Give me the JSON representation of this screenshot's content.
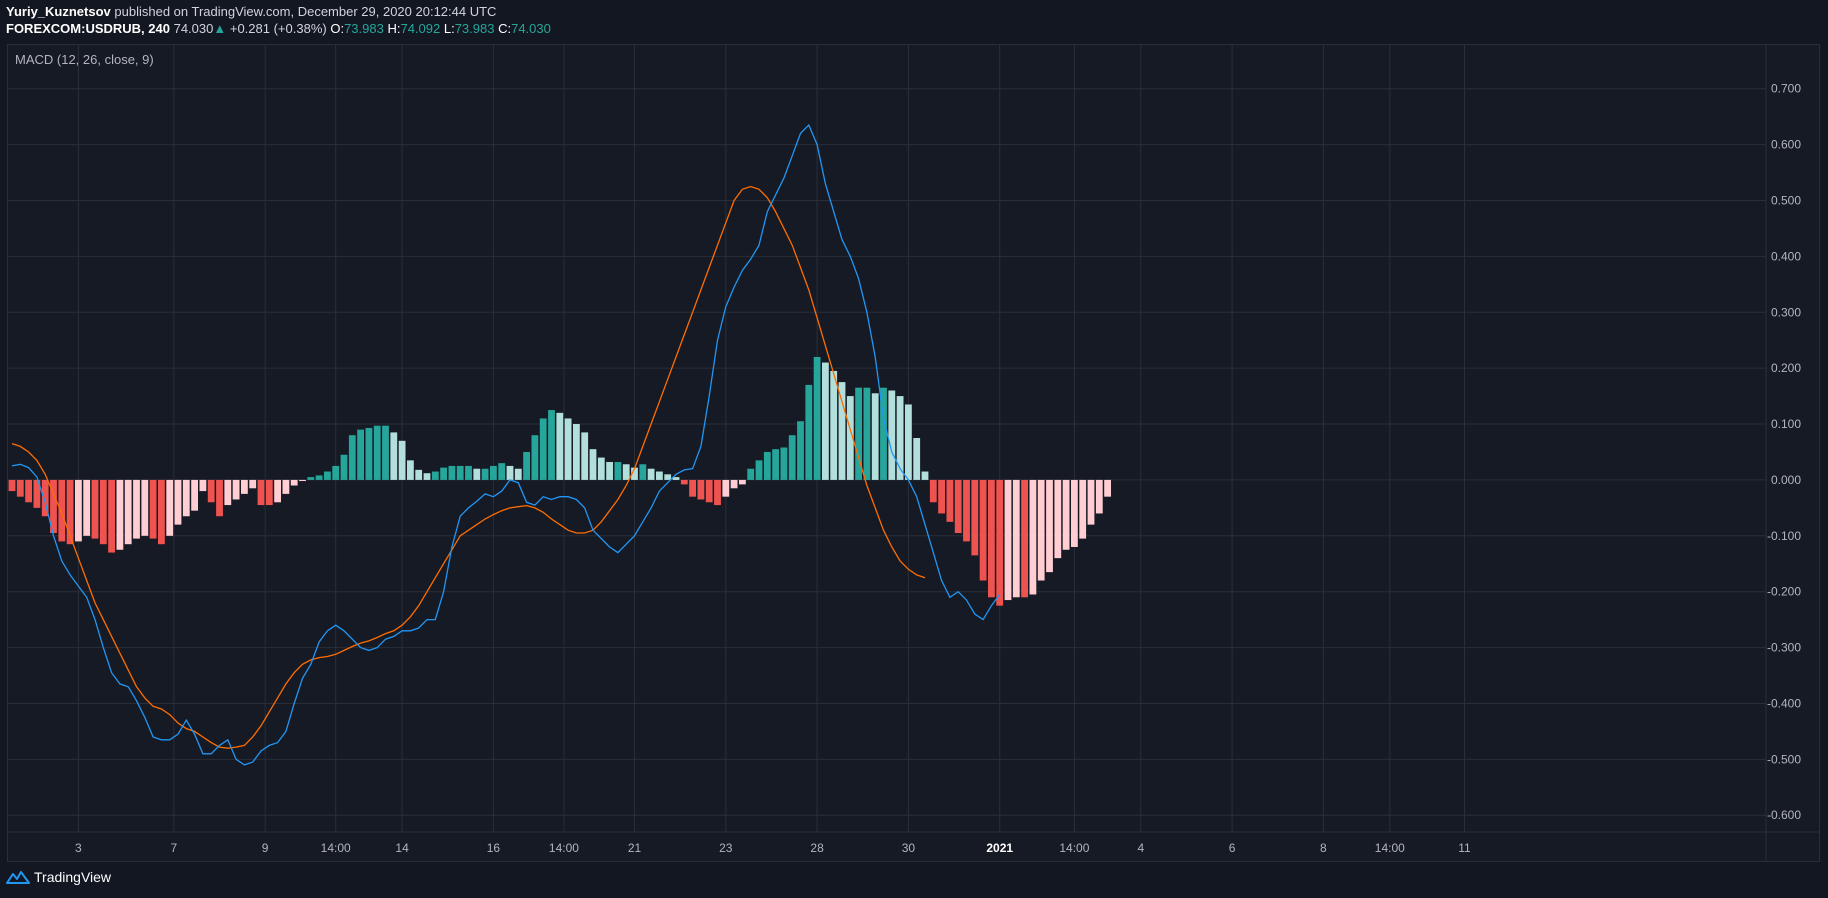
{
  "header": {
    "author": "Yuriy_Kuznetsov",
    "published_text": "published on TradingView.com, December 29, 2020 20:12:44 UTC",
    "symbol": "FOREXCOM:USDRUB, 240",
    "last": "74.030",
    "change_arrow": "▲",
    "change": "+0.281 (+0.38%)",
    "o_label": "O:",
    "o_value": "73.983",
    "h_label": "H:",
    "h_value": "74.092",
    "l_label": "L:",
    "l_value": "73.983",
    "c_label": "C:",
    "c_value": "74.030"
  },
  "indicator": {
    "label": "MACD (12, 26, close, 9)"
  },
  "brand": {
    "name": "TradingView",
    "icon": "tradingview-logo-icon"
  },
  "colors": {
    "background": "#131722",
    "grid": "#2a2e39",
    "macd_line": "#2196f3",
    "signal_line": "#ff6d00",
    "hist_up_strong": "#26a69a",
    "hist_up_weak": "#b2dfdb",
    "hist_down_strong": "#ef5350",
    "hist_down_weak": "#ffcdd2"
  },
  "chart_data": {
    "type": "bar+line",
    "yaxis": {
      "ticks": [
        "0.700",
        "0.600",
        "0.500",
        "0.400",
        "0.300",
        "0.200",
        "0.100",
        "0.000",
        "-0.100",
        "-0.200",
        "-0.300",
        "-0.400",
        "-0.500",
        "-0.600"
      ],
      "tick_values": [
        0.7,
        0.6,
        0.5,
        0.4,
        0.3,
        0.2,
        0.1,
        0.0,
        -0.1,
        -0.2,
        -0.3,
        -0.4,
        -0.5,
        -0.6
      ],
      "ylim": [
        -0.63,
        0.78
      ]
    },
    "xaxis": {
      "ticks": [
        "3",
        "7",
        "9",
        "14:00",
        "14",
        "16",
        "14:00",
        "21",
        "23",
        "28",
        "30",
        "2021",
        "14:00",
        "4",
        "6",
        "8",
        "14:00",
        "11"
      ],
      "tick_index": [
        8,
        19.5,
        30.5,
        39,
        47,
        58,
        66.5,
        75,
        86,
        97,
        108,
        119,
        128,
        136,
        147,
        158,
        166,
        175
      ],
      "bold_tick": "2021",
      "xlim": [
        0,
        179
      ]
    },
    "histogram": [
      -0.02,
      -0.03,
      -0.04,
      -0.05,
      -0.065,
      -0.095,
      -0.11,
      -0.115,
      -0.11,
      -0.1,
      -0.105,
      -0.115,
      -0.13,
      -0.125,
      -0.115,
      -0.105,
      -0.1,
      -0.105,
      -0.115,
      -0.1,
      -0.08,
      -0.065,
      -0.055,
      -0.02,
      -0.04,
      -0.065,
      -0.045,
      -0.035,
      -0.025,
      -0.015,
      -0.045,
      -0.045,
      -0.04,
      -0.025,
      -0.01,
      -0.002,
      0.005,
      0.008,
      0.015,
      0.025,
      0.045,
      0.08,
      0.09,
      0.093,
      0.097,
      0.097,
      0.085,
      0.07,
      0.035,
      0.018,
      0.012,
      0.015,
      0.022,
      0.025,
      0.025,
      0.025,
      0.02,
      0.02,
      0.025,
      0.03,
      0.025,
      0.02,
      0.05,
      0.08,
      0.11,
      0.125,
      0.12,
      0.11,
      0.1,
      0.085,
      0.055,
      0.04,
      0.032,
      0.032,
      0.028,
      0.022,
      0.028,
      0.02,
      0.015,
      0.01,
      0.005,
      -0.008,
      -0.03,
      -0.035,
      -0.04,
      -0.045,
      -0.03,
      -0.015,
      -0.008,
      0.02,
      0.035,
      0.05,
      0.055,
      0.058,
      0.08,
      0.105,
      0.17,
      0.22,
      0.21,
      0.195,
      0.175,
      0.15,
      0.165,
      0.165,
      0.155,
      0.165,
      0.16,
      0.15,
      0.135,
      0.075,
      0.015,
      -0.04,
      -0.06,
      -0.075,
      -0.095,
      -0.11,
      -0.135,
      -0.18,
      -0.21,
      -0.225,
      -0.215,
      -0.21,
      -0.21,
      -0.205,
      -0.18,
      -0.165,
      -0.14,
      -0.125,
      -0.12,
      -0.105,
      -0.08,
      -0.06,
      -0.03
    ],
    "macd_points": [
      [
        0,
        0.025
      ],
      [
        1,
        0.028
      ],
      [
        2,
        0.022
      ],
      [
        3,
        0.005
      ],
      [
        4,
        -0.04
      ],
      [
        5,
        -0.1
      ],
      [
        6,
        -0.145
      ],
      [
        7,
        -0.17
      ],
      [
        8,
        -0.19
      ],
      [
        9,
        -0.21
      ],
      [
        10,
        -0.25
      ],
      [
        11,
        -0.3
      ],
      [
        12,
        -0.345
      ],
      [
        13,
        -0.365
      ],
      [
        14,
        -0.37
      ],
      [
        15,
        -0.395
      ],
      [
        16,
        -0.425
      ],
      [
        17,
        -0.46
      ],
      [
        18,
        -0.465
      ],
      [
        19,
        -0.465
      ],
      [
        20,
        -0.455
      ],
      [
        21,
        -0.43
      ],
      [
        22,
        -0.455
      ],
      [
        23,
        -0.49
      ],
      [
        24,
        -0.49
      ],
      [
        25,
        -0.475
      ],
      [
        26,
        -0.465
      ],
      [
        27,
        -0.5
      ],
      [
        28,
        -0.51
      ],
      [
        29,
        -0.505
      ],
      [
        30,
        -0.485
      ],
      [
        31,
        -0.475
      ],
      [
        32,
        -0.47
      ],
      [
        33,
        -0.45
      ],
      [
        34,
        -0.4
      ],
      [
        35,
        -0.355
      ],
      [
        36,
        -0.33
      ],
      [
        37,
        -0.29
      ],
      [
        38,
        -0.27
      ],
      [
        39,
        -0.26
      ],
      [
        40,
        -0.27
      ],
      [
        41,
        -0.285
      ],
      [
        42,
        -0.3
      ],
      [
        43,
        -0.305
      ],
      [
        44,
        -0.3
      ],
      [
        45,
        -0.285
      ],
      [
        46,
        -0.28
      ],
      [
        47,
        -0.27
      ],
      [
        48,
        -0.27
      ],
      [
        49,
        -0.265
      ],
      [
        50,
        -0.25
      ],
      [
        51,
        -0.25
      ],
      [
        52,
        -0.2
      ],
      [
        53,
        -0.12
      ],
      [
        54,
        -0.065
      ],
      [
        55,
        -0.05
      ],
      [
        56,
        -0.038
      ],
      [
        57,
        -0.025
      ],
      [
        58,
        -0.03
      ],
      [
        59,
        -0.02
      ],
      [
        60,
        0.0
      ],
      [
        61,
        -0.005
      ],
      [
        62,
        -0.04
      ],
      [
        63,
        -0.045
      ],
      [
        64,
        -0.03
      ],
      [
        65,
        -0.035
      ],
      [
        66,
        -0.03
      ],
      [
        67,
        -0.03
      ],
      [
        68,
        -0.035
      ],
      [
        69,
        -0.05
      ],
      [
        70,
        -0.09
      ],
      [
        71,
        -0.105
      ],
      [
        72,
        -0.12
      ],
      [
        73,
        -0.13
      ],
      [
        74,
        -0.115
      ],
      [
        75,
        -0.1
      ],
      [
        76,
        -0.075
      ],
      [
        77,
        -0.05
      ],
      [
        78,
        -0.02
      ],
      [
        79,
        -0.005
      ],
      [
        80,
        0.01
      ],
      [
        81,
        0.018
      ],
      [
        82,
        0.02
      ],
      [
        83,
        0.06
      ],
      [
        84,
        0.15
      ],
      [
        85,
        0.25
      ],
      [
        86,
        0.31
      ],
      [
        87,
        0.345
      ],
      [
        88,
        0.375
      ],
      [
        89,
        0.395
      ],
      [
        90,
        0.42
      ],
      [
        91,
        0.48
      ],
      [
        92,
        0.51
      ],
      [
        93,
        0.54
      ],
      [
        94,
        0.58
      ],
      [
        95,
        0.62
      ],
      [
        96,
        0.635
      ],
      [
        97,
        0.6
      ],
      [
        98,
        0.53
      ],
      [
        99,
        0.48
      ],
      [
        100,
        0.43
      ],
      [
        101,
        0.4
      ],
      [
        102,
        0.36
      ],
      [
        103,
        0.3
      ],
      [
        104,
        0.22
      ],
      [
        105,
        0.11
      ],
      [
        106,
        0.05
      ],
      [
        107,
        0.02
      ],
      [
        108,
        0.0
      ],
      [
        109,
        -0.03
      ],
      [
        110,
        -0.08
      ],
      [
        111,
        -0.13
      ],
      [
        112,
        -0.18
      ],
      [
        113,
        -0.21
      ],
      [
        114,
        -0.2
      ],
      [
        115,
        -0.215
      ],
      [
        116,
        -0.24
      ],
      [
        117,
        -0.25
      ],
      [
        118,
        -0.225
      ],
      [
        119,
        -0.205
      ]
    ],
    "signal_points": [
      [
        0,
        0.065
      ],
      [
        1,
        0.06
      ],
      [
        2,
        0.05
      ],
      [
        3,
        0.035
      ],
      [
        4,
        0.01
      ],
      [
        5,
        -0.025
      ],
      [
        6,
        -0.06
      ],
      [
        7,
        -0.1
      ],
      [
        8,
        -0.14
      ],
      [
        9,
        -0.18
      ],
      [
        10,
        -0.22
      ],
      [
        11,
        -0.25
      ],
      [
        12,
        -0.28
      ],
      [
        13,
        -0.31
      ],
      [
        14,
        -0.34
      ],
      [
        15,
        -0.37
      ],
      [
        16,
        -0.39
      ],
      [
        17,
        -0.405
      ],
      [
        18,
        -0.41
      ],
      [
        19,
        -0.42
      ],
      [
        20,
        -0.435
      ],
      [
        21,
        -0.445
      ],
      [
        22,
        -0.45
      ],
      [
        23,
        -0.46
      ],
      [
        24,
        -0.47
      ],
      [
        25,
        -0.478
      ],
      [
        26,
        -0.48
      ],
      [
        27,
        -0.478
      ],
      [
        28,
        -0.475
      ],
      [
        29,
        -0.46
      ],
      [
        30,
        -0.44
      ],
      [
        31,
        -0.415
      ],
      [
        32,
        -0.39
      ],
      [
        33,
        -0.365
      ],
      [
        34,
        -0.345
      ],
      [
        35,
        -0.33
      ],
      [
        36,
        -0.322
      ],
      [
        37,
        -0.318
      ],
      [
        38,
        -0.316
      ],
      [
        39,
        -0.312
      ],
      [
        40,
        -0.305
      ],
      [
        41,
        -0.298
      ],
      [
        42,
        -0.292
      ],
      [
        43,
        -0.288
      ],
      [
        44,
        -0.282
      ],
      [
        45,
        -0.275
      ],
      [
        46,
        -0.27
      ],
      [
        47,
        -0.26
      ],
      [
        48,
        -0.245
      ],
      [
        49,
        -0.225
      ],
      [
        50,
        -0.2
      ],
      [
        51,
        -0.175
      ],
      [
        52,
        -0.15
      ],
      [
        53,
        -0.125
      ],
      [
        54,
        -0.1
      ],
      [
        55,
        -0.09
      ],
      [
        56,
        -0.08
      ],
      [
        57,
        -0.07
      ],
      [
        58,
        -0.062
      ],
      [
        59,
        -0.055
      ],
      [
        60,
        -0.05
      ],
      [
        61,
        -0.048
      ],
      [
        62,
        -0.046
      ],
      [
        63,
        -0.05
      ],
      [
        64,
        -0.058
      ],
      [
        65,
        -0.07
      ],
      [
        66,
        -0.08
      ],
      [
        67,
        -0.09
      ],
      [
        68,
        -0.095
      ],
      [
        69,
        -0.095
      ],
      [
        70,
        -0.09
      ],
      [
        71,
        -0.075
      ],
      [
        72,
        -0.055
      ],
      [
        73,
        -0.035
      ],
      [
        74,
        -0.01
      ],
      [
        75,
        0.02
      ],
      [
        76,
        0.06
      ],
      [
        77,
        0.1
      ],
      [
        78,
        0.14
      ],
      [
        79,
        0.18
      ],
      [
        80,
        0.22
      ],
      [
        81,
        0.26
      ],
      [
        82,
        0.3
      ],
      [
        83,
        0.34
      ],
      [
        84,
        0.38
      ],
      [
        85,
        0.42
      ],
      [
        86,
        0.46
      ],
      [
        87,
        0.5
      ],
      [
        88,
        0.52
      ],
      [
        89,
        0.525
      ],
      [
        90,
        0.52
      ],
      [
        91,
        0.505
      ],
      [
        92,
        0.48
      ],
      [
        93,
        0.45
      ],
      [
        94,
        0.42
      ],
      [
        95,
        0.38
      ],
      [
        96,
        0.34
      ],
      [
        97,
        0.29
      ],
      [
        98,
        0.24
      ],
      [
        99,
        0.19
      ],
      [
        100,
        0.14
      ],
      [
        101,
        0.09
      ],
      [
        102,
        0.04
      ],
      [
        103,
        -0.01
      ],
      [
        104,
        -0.05
      ],
      [
        105,
        -0.09
      ],
      [
        106,
        -0.12
      ],
      [
        107,
        -0.145
      ],
      [
        108,
        -0.16
      ],
      [
        109,
        -0.17
      ],
      [
        110,
        -0.175
      ]
    ],
    "legend": []
  }
}
